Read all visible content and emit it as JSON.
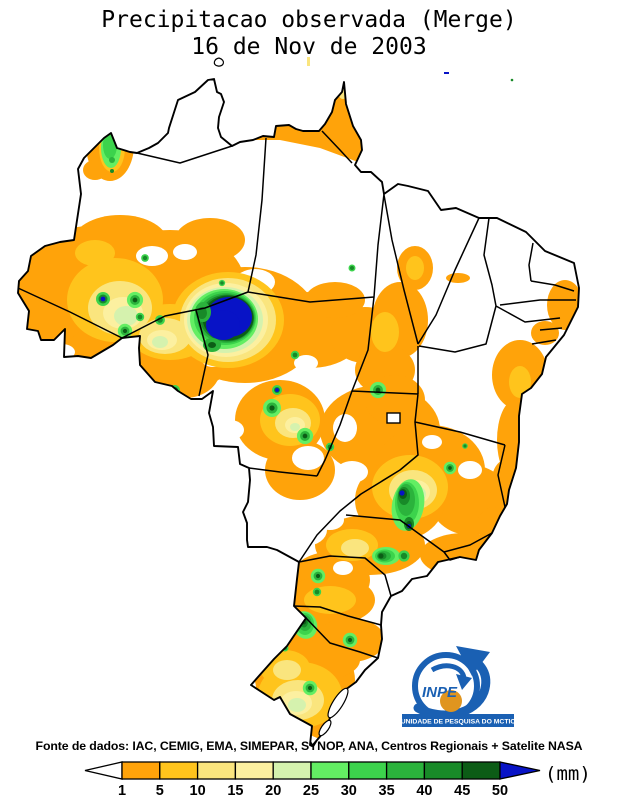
{
  "title": {
    "line1": "Precipitacao observada (Merge)",
    "line2": "16 de Nov de 2003"
  },
  "footer": {
    "source_line": "Fonte de dados: IAC, CEMIG, EMA, SIMEPAR, SYNOP, ANA, Centros Regionais + Satelite NASA",
    "unit_label": "(mm)"
  },
  "legend": {
    "tick_labels": [
      "1",
      "5",
      "10",
      "15",
      "20",
      "25",
      "30",
      "35",
      "40",
      "45",
      "50"
    ],
    "cells": [
      {
        "range": "1-5",
        "color_key": "p1"
      },
      {
        "range": "5-10",
        "color_key": "p2"
      },
      {
        "range": "10-15",
        "color_key": "p3"
      },
      {
        "range": "15-20",
        "color_key": "p4"
      },
      {
        "range": "20-25",
        "color_key": "p5"
      },
      {
        "range": "25-30",
        "color_key": "p6"
      },
      {
        "range": "30-35",
        "color_key": "p7"
      },
      {
        "range": "35-40",
        "color_key": "p8"
      },
      {
        "range": "40-45",
        "color_key": "p9"
      },
      {
        "range": "45-50",
        "color_key": "p10"
      }
    ],
    "underflow_arrow_color_key": "nodata",
    "overflow_arrow_color_key": "over"
  },
  "palette": {
    "p1": "#FFA30A",
    "p2": "#FFC41C",
    "p3": "#FAE57E",
    "p4": "#FCF0A0",
    "p5": "#D5F2AE",
    "p6": "#63EE63",
    "p7": "#3CD34C",
    "p8": "#2BB33C",
    "p9": "#188A28",
    "p10": "#0C5C16",
    "over": "#0813C6",
    "nodata": "#FFFFFF",
    "ink": "#000000",
    "logo_blue": "#1A60B3",
    "logo_orange": "#E0951F",
    "logo_text": "#FFFFFF"
  },
  "logo": {
    "acronym": "INPE",
    "banner_text": "UNIDADE DE PESQUISA DO MCTIC"
  }
}
